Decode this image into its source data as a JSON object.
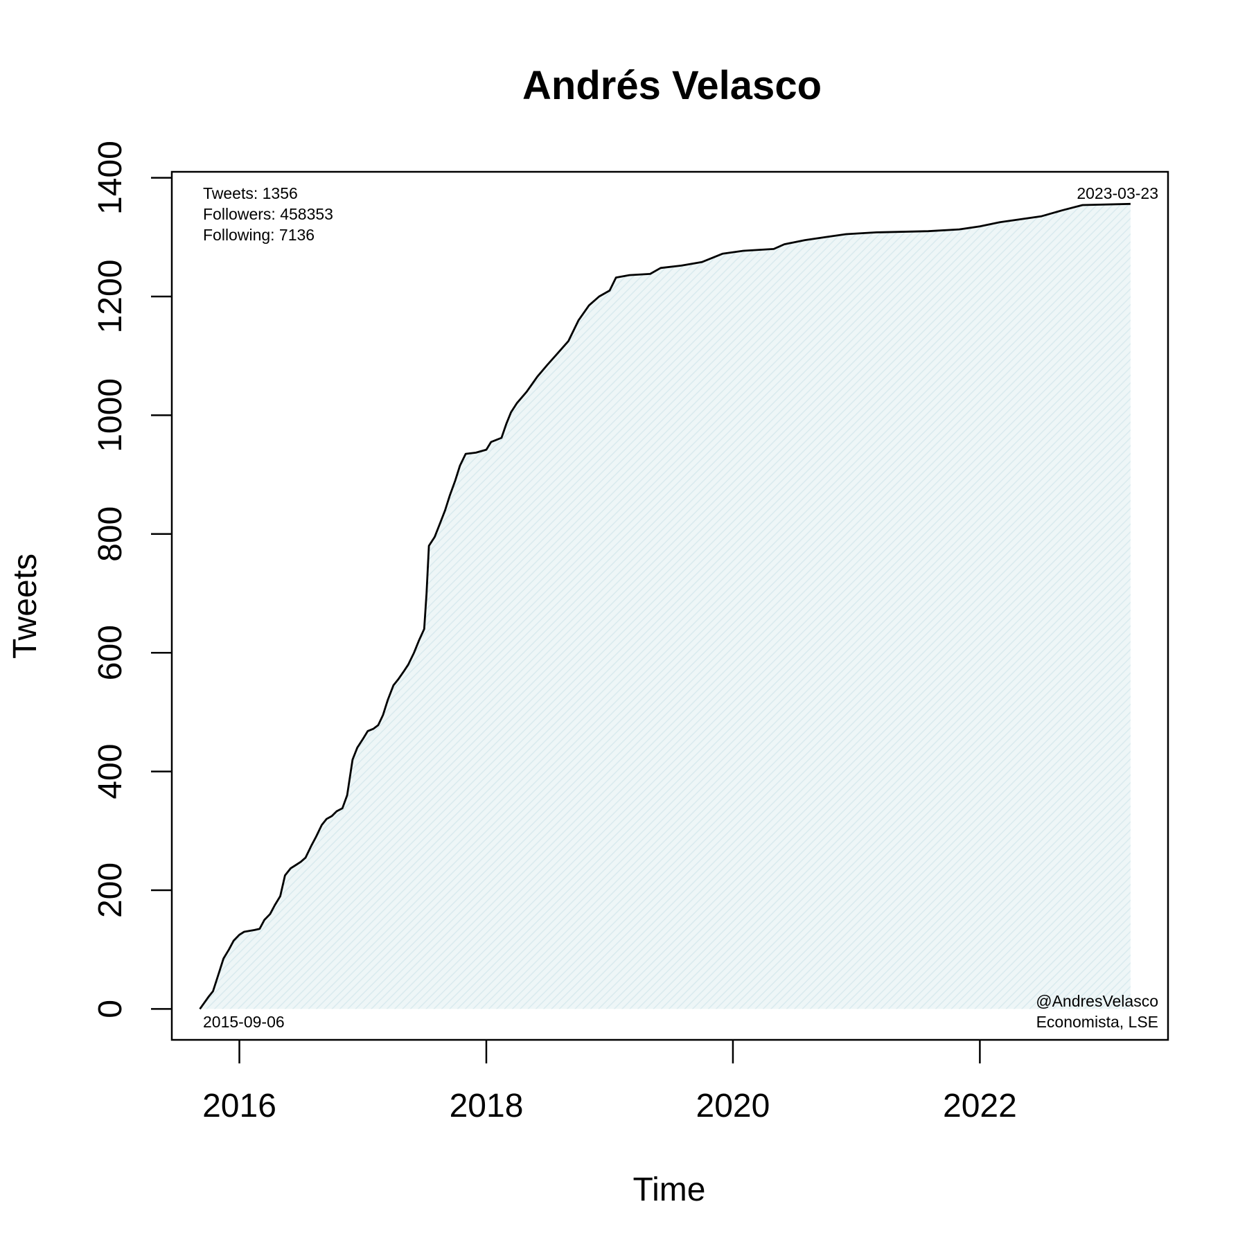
{
  "chart_data": {
    "type": "area",
    "title": "Andrés Velasco",
    "xlabel": "Time",
    "ylabel": "Tweets",
    "xlim": [
      "2015-06-15",
      "2023-07-12"
    ],
    "ylim": [
      -52,
      1410
    ],
    "x_ticks": [
      {
        "label": "2016",
        "date": "2016-01-01"
      },
      {
        "label": "2018",
        "date": "2018-01-01"
      },
      {
        "label": "2020",
        "date": "2020-01-01"
      },
      {
        "label": "2022",
        "date": "2022-01-01"
      }
    ],
    "y_ticks": [
      0,
      200,
      400,
      600,
      800,
      1000,
      1200,
      1400
    ],
    "grid": false,
    "fill_color": "#e6f2f4",
    "line_color": "#000000",
    "stats": {
      "tweets": "Tweets: 1356",
      "followers": "Followers: 458353",
      "following": "Following: 7136"
    },
    "start_date": "2015-09-06",
    "end_date": "2023-03-23",
    "handle": "@AndresVelasco",
    "bio": "Economista, LSE",
    "series": [
      {
        "points": [
          [
            "2015-09-06",
            0
          ],
          [
            "2015-10-01",
            20
          ],
          [
            "2015-10-15",
            30
          ],
          [
            "2015-11-01",
            60
          ],
          [
            "2015-11-15",
            85
          ],
          [
            "2015-12-01",
            100
          ],
          [
            "2015-12-15",
            115
          ],
          [
            "2016-01-01",
            125
          ],
          [
            "2016-01-15",
            130
          ],
          [
            "2016-02-15",
            133
          ],
          [
            "2016-03-01",
            135
          ],
          [
            "2016-03-15",
            150
          ],
          [
            "2016-04-01",
            160
          ],
          [
            "2016-04-15",
            175
          ],
          [
            "2016-05-01",
            190
          ],
          [
            "2016-05-15",
            225
          ],
          [
            "2016-06-01",
            237
          ],
          [
            "2016-06-15",
            242
          ],
          [
            "2016-07-01",
            248
          ],
          [
            "2016-07-15",
            255
          ],
          [
            "2016-08-01",
            275
          ],
          [
            "2016-08-15",
            290
          ],
          [
            "2016-09-01",
            310
          ],
          [
            "2016-09-15",
            320
          ],
          [
            "2016-10-01",
            325
          ],
          [
            "2016-10-15",
            333
          ],
          [
            "2016-11-01",
            338
          ],
          [
            "2016-11-15",
            360
          ],
          [
            "2016-12-01",
            420
          ],
          [
            "2016-12-15",
            440
          ],
          [
            "2017-01-01",
            455
          ],
          [
            "2017-01-15",
            468
          ],
          [
            "2017-02-01",
            472
          ],
          [
            "2017-02-15",
            478
          ],
          [
            "2017-03-01",
            495
          ],
          [
            "2017-03-15",
            520
          ],
          [
            "2017-04-01",
            545
          ],
          [
            "2017-04-15",
            555
          ],
          [
            "2017-05-01",
            568
          ],
          [
            "2017-05-15",
            580
          ],
          [
            "2017-06-01",
            600
          ],
          [
            "2017-06-15",
            620
          ],
          [
            "2017-07-01",
            640
          ],
          [
            "2017-07-08",
            700
          ],
          [
            "2017-07-15",
            780
          ],
          [
            "2017-08-01",
            795
          ],
          [
            "2017-08-15",
            815
          ],
          [
            "2017-09-01",
            840
          ],
          [
            "2017-09-15",
            865
          ],
          [
            "2017-10-01",
            890
          ],
          [
            "2017-10-15",
            915
          ],
          [
            "2017-11-01",
            935
          ],
          [
            "2017-12-01",
            937
          ],
          [
            "2018-01-01",
            942
          ],
          [
            "2018-01-15",
            955
          ],
          [
            "2018-02-15",
            962
          ],
          [
            "2018-03-01",
            985
          ],
          [
            "2018-03-15",
            1005
          ],
          [
            "2018-04-01",
            1020
          ],
          [
            "2018-05-01",
            1040
          ],
          [
            "2018-06-01",
            1065
          ],
          [
            "2018-07-01",
            1085
          ],
          [
            "2018-08-01",
            1105
          ],
          [
            "2018-09-01",
            1125
          ],
          [
            "2018-10-01",
            1160
          ],
          [
            "2018-11-01",
            1185
          ],
          [
            "2018-12-01",
            1200
          ],
          [
            "2019-01-01",
            1210
          ],
          [
            "2019-01-20",
            1232
          ],
          [
            "2019-03-01",
            1236
          ],
          [
            "2019-05-01",
            1238
          ],
          [
            "2019-06-01",
            1248
          ],
          [
            "2019-08-01",
            1252
          ],
          [
            "2019-10-01",
            1258
          ],
          [
            "2019-12-01",
            1272
          ],
          [
            "2020-02-01",
            1277
          ],
          [
            "2020-05-01",
            1280
          ],
          [
            "2020-06-01",
            1288
          ],
          [
            "2020-08-01",
            1295
          ],
          [
            "2020-10-01",
            1300
          ],
          [
            "2020-12-01",
            1305
          ],
          [
            "2021-03-01",
            1308
          ],
          [
            "2021-08-01",
            1310
          ],
          [
            "2021-11-01",
            1313
          ],
          [
            "2022-01-01",
            1318
          ],
          [
            "2022-03-01",
            1325
          ],
          [
            "2022-07-01",
            1335
          ],
          [
            "2022-09-01",
            1345
          ],
          [
            "2022-11-01",
            1354
          ],
          [
            "2023-03-23",
            1356
          ]
        ]
      }
    ]
  }
}
